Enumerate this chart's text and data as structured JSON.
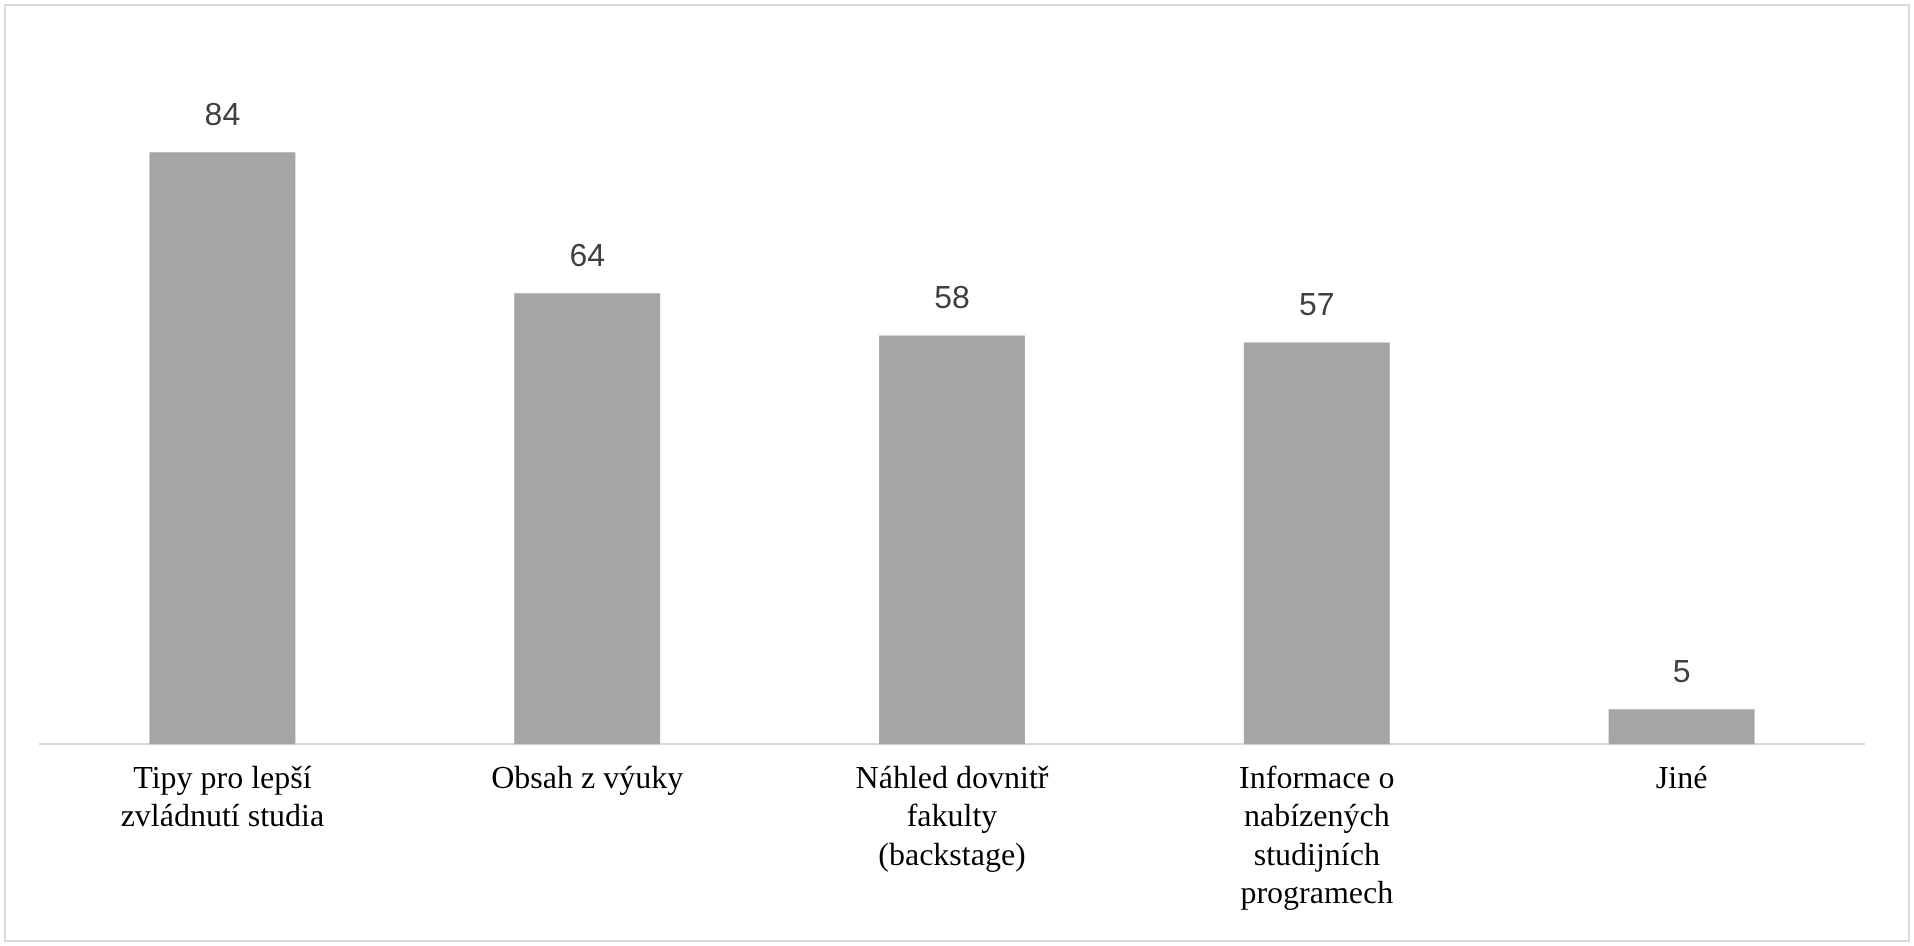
{
  "chart_data": {
    "type": "bar",
    "categories": [
      "Tipy pro lepší zvládnutí studia",
      "Obsah z výuky",
      "Náhled dovnitř fakulty (backstage)",
      "Informace o nabízených studijních programech",
      "Jiné"
    ],
    "values": [
      84,
      64,
      58,
      57,
      5
    ],
    "color": "#a5a5a5",
    "data_labels": true,
    "legend": false
  }
}
